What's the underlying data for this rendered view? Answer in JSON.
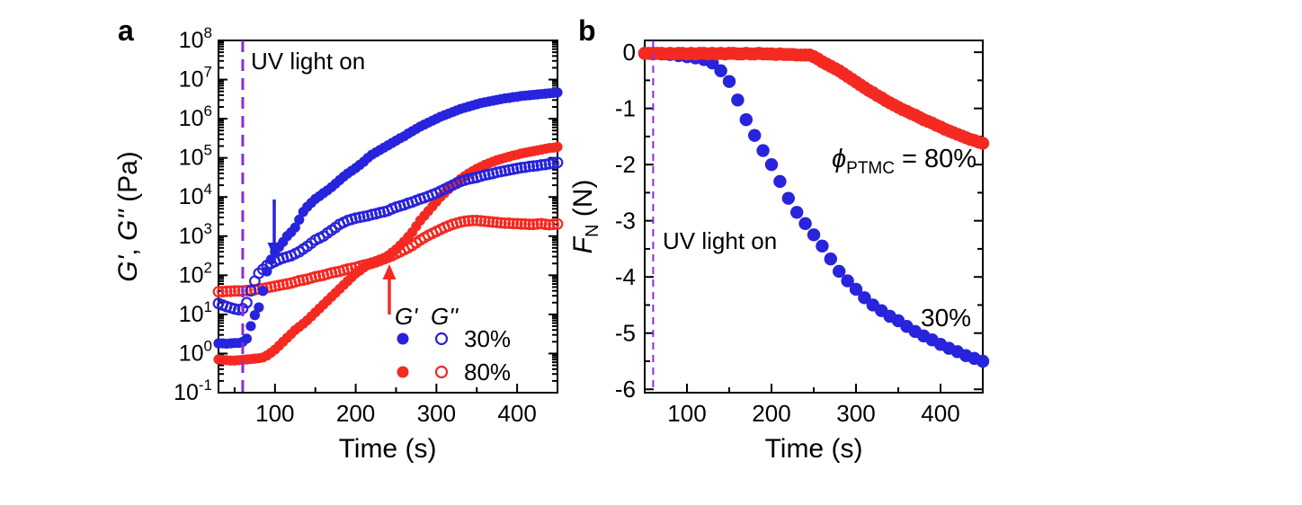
{
  "labels": {
    "panel_a_letter": "a",
    "panel_b_letter": "b",
    "uv_annotation": "UV light on",
    "time_axis_title": "Time (s)",
    "panel_a_y_title_g1": "G'",
    "panel_a_y_title_sep": ", ",
    "panel_a_y_title_g2": "G''",
    "panel_a_y_title_unit": " (Pa)",
    "panel_b_y_title_f": "F",
    "panel_b_y_title_sub": "N",
    "panel_b_y_title_unit": " (N)",
    "legend_col1": "G'",
    "legend_col2": "G''",
    "legend_row1_label": "30%",
    "legend_row2_label": "80%",
    "phi_symbol": "ϕ",
    "phi_sub": "PTMC",
    "phi_value": " = 80%",
    "label_30_percent": "30%"
  },
  "colors": {
    "blue": "#2823DC",
    "red": "#F42A22",
    "purple": "#8A2BE2",
    "black": "#000000"
  },
  "chart_data": [
    {
      "type": "scatter",
      "panel": "a",
      "xlabel": "Time (s)",
      "ylabel": "G', G'' (Pa)",
      "x_range": [
        30,
        450
      ],
      "x_ticks": [
        100,
        200,
        300,
        400
      ],
      "x_minor_ticks": [
        50,
        150,
        250,
        350
      ],
      "y_scale": "log10",
      "y_range_log": [
        -1,
        8
      ],
      "y_tick_exponents": [
        8,
        7,
        6,
        5,
        4,
        3,
        2,
        1,
        0,
        -1
      ],
      "uv_line_time": 60,
      "gel_point_arrow_30_time": 95,
      "gel_point_arrow_80_time": 240,
      "series": [
        {
          "name": "G'' 80%",
          "color": "red",
          "marker": "open",
          "t0": 30,
          "dt": 5,
          "log10_values": [
            1.58,
            1.58,
            1.59,
            1.59,
            1.6,
            1.6,
            1.6,
            1.61,
            1.62,
            1.63,
            1.65,
            1.66,
            1.68,
            1.7,
            1.72,
            1.74,
            1.76,
            1.78,
            1.8,
            1.83,
            1.86,
            1.88,
            1.9,
            1.93,
            1.96,
            1.98,
            2.0,
            2.03,
            2.06,
            2.08,
            2.1,
            2.13,
            2.16,
            2.18,
            2.2,
            2.23,
            2.26,
            2.28,
            2.31,
            2.34,
            2.38,
            2.42,
            2.46,
            2.5,
            2.55,
            2.6,
            2.65,
            2.7,
            2.76,
            2.83,
            2.9,
            2.96,
            3.02,
            3.07,
            3.12,
            3.17,
            3.22,
            3.26,
            3.3,
            3.33,
            3.36,
            3.38,
            3.39,
            3.4,
            3.4,
            3.39,
            3.38,
            3.37,
            3.36,
            3.35,
            3.34,
            3.33,
            3.33,
            3.32,
            3.32,
            3.31,
            3.31,
            3.3,
            3.3,
            3.31,
            3.32,
            3.3,
            3.29,
            3.3,
            3.31
          ]
        },
        {
          "name": "G' 80%",
          "color": "red",
          "marker": "filled",
          "t0": 30,
          "dt": 5,
          "log10_values": [
            -0.15,
            -0.16,
            -0.17,
            -0.18,
            -0.18,
            -0.17,
            -0.16,
            -0.15,
            -0.14,
            -0.13,
            -0.12,
            -0.1,
            -0.05,
            0.02,
            0.1,
            0.2,
            0.3,
            0.4,
            0.5,
            0.6,
            0.68,
            0.76,
            0.85,
            0.95,
            1.05,
            1.15,
            1.25,
            1.35,
            1.45,
            1.55,
            1.65,
            1.75,
            1.85,
            1.95,
            2.05,
            2.12,
            2.2,
            2.26,
            2.32,
            2.36,
            2.4,
            2.44,
            2.5,
            2.58,
            2.66,
            2.76,
            2.86,
            2.98,
            3.1,
            3.25,
            3.4,
            3.52,
            3.64,
            3.76,
            3.88,
            4.0,
            4.1,
            4.2,
            4.3,
            4.38,
            4.46,
            4.53,
            4.6,
            4.66,
            4.72,
            4.77,
            4.82,
            4.86,
            4.9,
            4.94,
            4.97,
            5.0,
            5.03,
            5.06,
            5.08,
            5.11,
            5.13,
            5.15,
            5.17,
            5.19,
            5.21,
            5.23,
            5.25,
            5.26,
            5.28
          ]
        },
        {
          "name": "G'' 30%",
          "color": "blue",
          "marker": "open",
          "t0": 30,
          "dt": 5,
          "log10_values": [
            1.28,
            1.24,
            1.2,
            1.17,
            1.14,
            1.12,
            1.15,
            1.3,
            1.6,
            1.85,
            2.05,
            2.15,
            2.25,
            2.3,
            2.35,
            2.4,
            2.44,
            2.47,
            2.5,
            2.55,
            2.6,
            2.67,
            2.74,
            2.82,
            2.9,
            2.95,
            3.0,
            3.08,
            3.15,
            3.22,
            3.3,
            3.35,
            3.4,
            3.43,
            3.46,
            3.48,
            3.5,
            3.52,
            3.55,
            3.57,
            3.6,
            3.62,
            3.65,
            3.7,
            3.74,
            3.77,
            3.8,
            3.84,
            3.87,
            3.91,
            3.95,
            3.98,
            4.02,
            4.06,
            4.1,
            4.15,
            4.2,
            4.25,
            4.3,
            4.35,
            4.4,
            4.43,
            4.46,
            4.48,
            4.5,
            4.53,
            4.56,
            4.58,
            4.6,
            4.63,
            4.65,
            4.67,
            4.69,
            4.71,
            4.73,
            4.75,
            4.76,
            4.78,
            4.79,
            4.8,
            4.82,
            4.83,
            4.85,
            4.86,
            4.88
          ]
        },
        {
          "name": "G' 30%",
          "color": "blue",
          "marker": "filled",
          "t0": 30,
          "dt": 5,
          "log10_values": [
            0.26,
            0.26,
            0.25,
            0.26,
            0.27,
            0.27,
            0.3,
            0.38,
            0.7,
            0.98,
            1.18,
            1.6,
            2.1,
            2.4,
            2.6,
            2.72,
            2.85,
            3.0,
            3.1,
            3.22,
            3.42,
            3.62,
            3.75,
            3.85,
            3.95,
            4.02,
            4.1,
            4.17,
            4.25,
            4.34,
            4.43,
            4.52,
            4.6,
            4.67,
            4.74,
            4.82,
            4.9,
            5.0,
            5.08,
            5.14,
            5.2,
            5.26,
            5.32,
            5.38,
            5.44,
            5.5,
            5.55,
            5.62,
            5.68,
            5.74,
            5.8,
            5.85,
            5.9,
            5.95,
            6.0,
            6.05,
            6.09,
            6.13,
            6.17,
            6.21,
            6.25,
            6.28,
            6.31,
            6.34,
            6.37,
            6.4,
            6.42,
            6.44,
            6.46,
            6.48,
            6.5,
            6.52,
            6.53,
            6.55,
            6.56,
            6.58,
            6.59,
            6.6,
            6.61,
            6.62,
            6.63,
            6.64,
            6.65,
            6.66,
            6.67
          ]
        }
      ]
    },
    {
      "type": "scatter",
      "panel": "b",
      "xlabel": "Time (s)",
      "ylabel": "F_N (N)",
      "x_range": [
        50,
        450
      ],
      "x_ticks": [
        100,
        200,
        300,
        400
      ],
      "x_minor_ticks": [
        150,
        250,
        350
      ],
      "y_range": [
        -6.06,
        0.21
      ],
      "y_ticks": [
        0,
        -1,
        -2,
        -3,
        -4,
        -5,
        -6
      ],
      "y_minor_ticks": [
        -0.5,
        -1.5,
        -2.5,
        -3.5,
        -4.5,
        -5.5
      ],
      "uv_line_time": 60,
      "series": [
        {
          "name": "30%",
          "color": "blue",
          "marker": "filled",
          "t0": 50,
          "dt": 10,
          "values": [
            -0.02,
            -0.02,
            -0.03,
            -0.04,
            -0.06,
            -0.08,
            -0.1,
            -0.13,
            -0.19,
            -0.33,
            -0.52,
            -0.85,
            -1.2,
            -1.48,
            -1.75,
            -2.0,
            -2.3,
            -2.6,
            -2.85,
            -3.05,
            -3.25,
            -3.45,
            -3.68,
            -3.9,
            -4.07,
            -4.22,
            -4.37,
            -4.5,
            -4.6,
            -4.7,
            -4.78,
            -4.88,
            -4.97,
            -5.05,
            -5.12,
            -5.2,
            -5.27,
            -5.33,
            -5.4,
            -5.45,
            -5.5
          ]
        },
        {
          "name": "80%",
          "color": "red",
          "marker": "filled",
          "t0": 50,
          "dt": 5,
          "values": [
            -0.02,
            -0.02,
            -0.03,
            -0.02,
            -0.02,
            -0.03,
            -0.02,
            -0.03,
            -0.02,
            -0.02,
            -0.03,
            -0.02,
            -0.03,
            -0.02,
            -0.02,
            -0.03,
            -0.02,
            -0.03,
            -0.02,
            -0.03,
            -0.02,
            -0.02,
            -0.03,
            -0.03,
            -0.02,
            -0.03,
            -0.03,
            -0.02,
            -0.03,
            -0.03,
            -0.03,
            -0.04,
            -0.03,
            -0.04,
            -0.04,
            -0.04,
            -0.05,
            -0.05,
            -0.05,
            -0.05,
            -0.08,
            -0.12,
            -0.17,
            -0.21,
            -0.25,
            -0.29,
            -0.33,
            -0.38,
            -0.43,
            -0.48,
            -0.53,
            -0.58,
            -0.63,
            -0.68,
            -0.72,
            -0.77,
            -0.81,
            -0.86,
            -0.9,
            -0.94,
            -0.98,
            -1.02,
            -1.05,
            -1.09,
            -1.12,
            -1.16,
            -1.2,
            -1.23,
            -1.26,
            -1.3,
            -1.33,
            -1.37,
            -1.4,
            -1.43,
            -1.46,
            -1.49,
            -1.52,
            -1.55,
            -1.57,
            -1.6,
            -1.62
          ]
        }
      ]
    }
  ]
}
